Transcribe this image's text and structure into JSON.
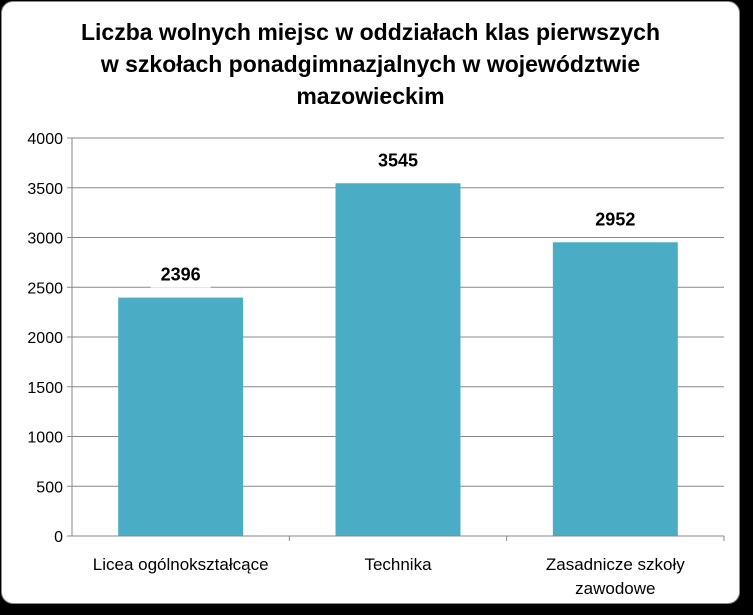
{
  "chart_data": {
    "type": "bar",
    "title_lines": [
      "Liczba wolnych miejsc w oddziałach klas pierwszych",
      "w szkołach ponadgimnazjalnych w województwie",
      "mazowieckim"
    ],
    "categories": [
      [
        "Licea ogólnokształcące"
      ],
      [
        "Technika"
      ],
      [
        "Zasadnicze szkoły",
        "zawodowe"
      ]
    ],
    "values": [
      2396,
      3545,
      2952
    ],
    "ylim": [
      0,
      4000
    ],
    "yticks": [
      0,
      500,
      1000,
      1500,
      2000,
      2500,
      3000,
      3500,
      4000
    ],
    "grid": true,
    "legend": "none",
    "bar_color": "#4bacc6",
    "grid_color": "#888888"
  }
}
